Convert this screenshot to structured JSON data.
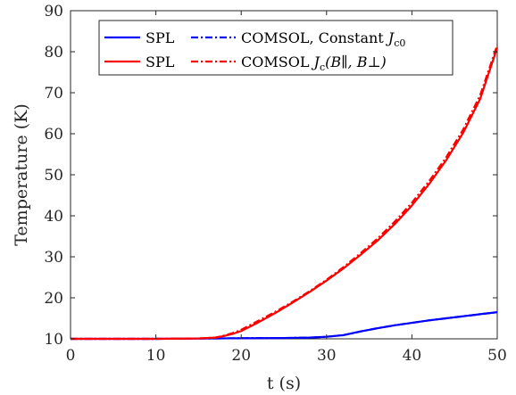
{
  "chart_data": {
    "type": "line",
    "xlabel": "t (s)",
    "ylabel": "Temperature (K)",
    "xlim": [
      0,
      50
    ],
    "ylim": [
      10,
      90
    ],
    "xticks": [
      "0",
      "10",
      "20",
      "30",
      "40",
      "50"
    ],
    "yticks": [
      "10",
      "20",
      "30",
      "40",
      "50",
      "60",
      "70",
      "80",
      "90"
    ],
    "grid": false,
    "legend_position": "top-left",
    "legend_layout": "2 rows x 2 columns",
    "series": [
      {
        "name": "SPL",
        "color": "#0000ff",
        "style": "solid",
        "x": [
          0,
          10,
          17,
          20,
          25,
          28,
          30,
          32,
          34,
          36,
          38,
          40,
          42,
          44,
          46,
          48,
          50
        ],
        "y": [
          10,
          10,
          10.1,
          10.15,
          10.2,
          10.3,
          10.5,
          10.9,
          11.8,
          12.6,
          13.3,
          13.9,
          14.5,
          15.0,
          15.5,
          16.0,
          16.5
        ]
      },
      {
        "name": "COMSOL, Constant J_c0",
        "label_main": "COMSOL, Constant ",
        "label_math": "J",
        "label_sub": "c0",
        "color": "#0000ff",
        "style": "dashdot",
        "x": [
          0,
          10,
          17,
          20,
          25,
          28,
          30,
          32,
          34,
          36,
          38,
          40,
          42,
          44,
          46,
          48,
          50
        ],
        "y": [
          10,
          10,
          10.1,
          10.15,
          10.2,
          10.3,
          10.5,
          10.9,
          11.8,
          12.6,
          13.3,
          13.9,
          14.5,
          15.0,
          15.5,
          16.0,
          16.5
        ]
      },
      {
        "name": "SPL",
        "color": "#ff0000",
        "style": "solid",
        "x": [
          0,
          10,
          15,
          17,
          18,
          19,
          20,
          22,
          24,
          26,
          28,
          30,
          32,
          34,
          36,
          38,
          40,
          42,
          44,
          46,
          48,
          50
        ],
        "y": [
          10,
          10,
          10.1,
          10.3,
          10.7,
          11.2,
          11.9,
          14.0,
          16.3,
          18.8,
          21.4,
          24.2,
          27.2,
          30.5,
          34.0,
          38.0,
          42.5,
          47.7,
          53.5,
          60.2,
          68.5,
          81.0
        ]
      },
      {
        "name": "COMSOL J_c(B_par, B_perp)",
        "label_main": "COMSOL ",
        "label_math": "J",
        "label_sub": "c",
        "label_args": "(B∥, B⊥)",
        "color": "#ff0000",
        "style": "dashdot",
        "x": [
          0,
          10,
          15,
          17,
          18,
          19,
          20,
          22,
          24,
          26,
          28,
          30,
          32,
          34,
          36,
          38,
          40,
          42,
          44,
          46,
          48,
          50
        ],
        "y": [
          10,
          10,
          10.1,
          10.3,
          10.8,
          11.4,
          12.2,
          14.4,
          16.6,
          19.0,
          21.6,
          24.4,
          27.5,
          30.9,
          34.5,
          38.6,
          43.2,
          48.4,
          54.2,
          61.0,
          69.4,
          81.6
        ]
      }
    ]
  }
}
